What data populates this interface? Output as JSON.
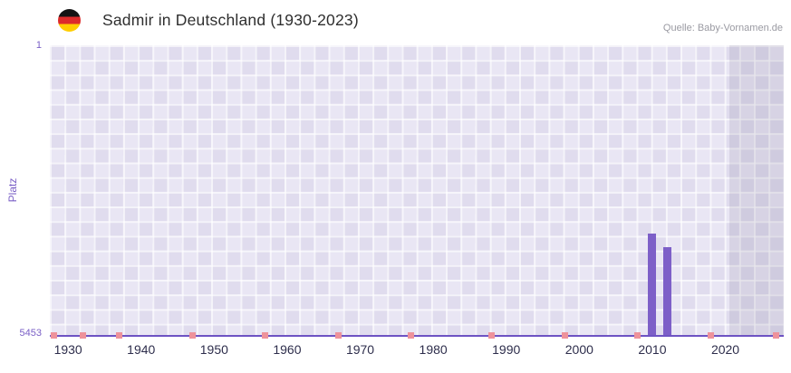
{
  "header": {
    "title": "Sadmir in Deutschland (1930-2023)",
    "source": "Quelle: Baby-Vornamen.de",
    "flag_icon": "germany-flag-icon"
  },
  "chart_data": {
    "type": "bar",
    "title": "Sadmir in Deutschland (1930-2023)",
    "xlabel": "",
    "ylabel": "Platz",
    "x_axis": {
      "min": 1927.5,
      "max": 2028,
      "ticks": [
        1930,
        1940,
        1950,
        1960,
        1970,
        1980,
        1990,
        2000,
        2010,
        2020
      ]
    },
    "y_axis": {
      "min": 1,
      "max": 5453,
      "inverted": true,
      "top_label": "1",
      "bottom_label": "5453"
    },
    "series": [
      {
        "name": "Platz",
        "points": [
          {
            "year": 2010,
            "rank": 3550
          },
          {
            "year": 2012,
            "rank": 3800
          }
        ]
      }
    ],
    "axis_marks_years": [
      1928,
      1932,
      1937,
      1947,
      1957,
      1967,
      1977,
      1988,
      1998,
      2008,
      2018,
      2027
    ],
    "shaded_region": {
      "from": 2020.5,
      "to": 2028
    },
    "grid": true,
    "legend": false,
    "colors": {
      "title": "#2f2f2f",
      "source": "#9a9aa2",
      "tick": "#2e2e4c",
      "ylab": "#7a5fc6",
      "bar": "#7d5fc8",
      "axis": "#6e53c3",
      "mark": "#ee929b",
      "plot_bg": "#e9e6f4",
      "plot_bg_alt": "#e0dcee",
      "grid": "rgba(255,255,255,0.65)",
      "shade": "rgba(135,130,155,0.18)"
    }
  }
}
